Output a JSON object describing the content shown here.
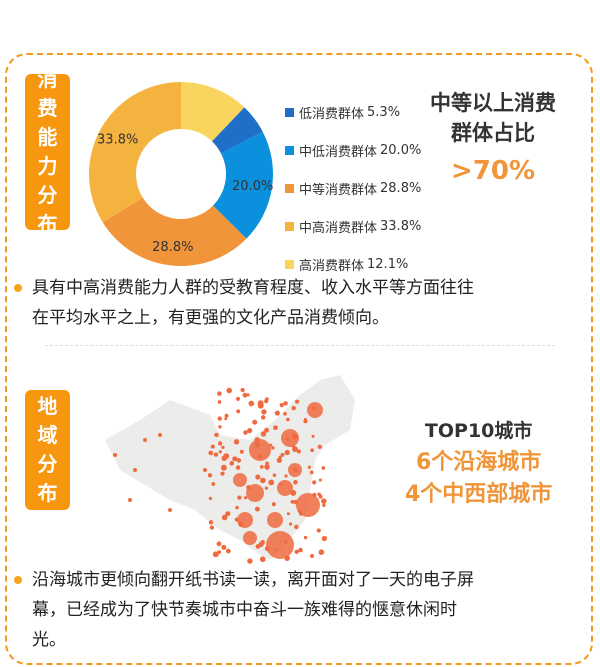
{
  "section1": {
    "tag": [
      "消",
      "费",
      "能",
      "力",
      "分",
      "布"
    ],
    "headline_line1": "中等以上消费",
    "headline_line2": "群体占比",
    "headline_value": ">70%",
    "bullet": [
      "具有中高消费能力人群的受教育程度、收入水平等方面往往",
      "在平均水平之上，有更强的文化产品消费倾向。"
    ]
  },
  "chart_data": {
    "type": "pie",
    "donut": true,
    "categories": [
      "高消费群体",
      "低消费群体",
      "中低消费群体",
      "中等消费群体",
      "中高消费群体"
    ],
    "values": [
      12.1,
      5.3,
      20.0,
      28.8,
      33.8
    ],
    "value_labels": [
      "12.1%",
      "5.3%",
      "20.0%",
      "28.8%",
      "33.8%"
    ],
    "slice_labels_shown": [
      "",
      "",
      "20.0%",
      "28.8%",
      "33.8%"
    ],
    "colors": [
      "#f9d45e",
      "#1f6fc8",
      "#0b90dd",
      "#f0953a",
      "#f4b33f"
    ],
    "legend_order": [
      1,
      2,
      3,
      4,
      0
    ],
    "legend_placement": "right"
  },
  "section2": {
    "tag": [
      "地",
      "域",
      "分",
      "布"
    ],
    "line1": "TOP10城市",
    "line2": "6个沿海城市",
    "line3": "4个中西部城市",
    "bullet": [
      "沿海城市更倾向翻开纸书读一读，离开面对了一天的电子屏",
      "幕，已经成为了快节奏城市中奋斗一族难得的惬意休闲时",
      "光。"
    ]
  },
  "colors": {
    "accent": "#f7960f",
    "headline_orange": "#f0953a",
    "map_dot": "#ef6b3f",
    "map_land": "#ececea"
  }
}
